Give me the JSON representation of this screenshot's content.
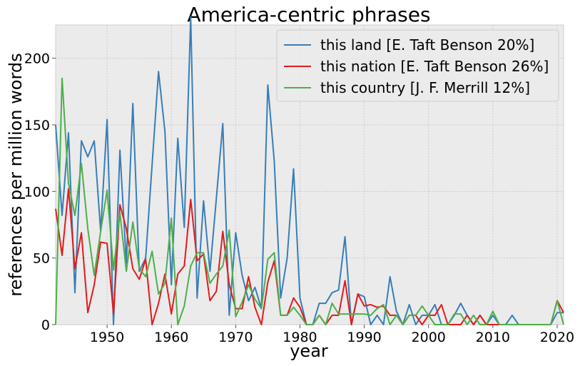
{
  "chart_data": {
    "type": "line",
    "title": "America-centric phrases",
    "xlabel": "year",
    "ylabel": "references per million words",
    "xlim": [
      1942,
      2021
    ],
    "ylim": [
      0,
      225
    ],
    "x_ticks": [
      1950,
      1960,
      1970,
      1980,
      1990,
      2000,
      2010,
      2020
    ],
    "y_ticks": [
      0,
      50,
      100,
      150,
      200
    ],
    "grid": true,
    "legend_position": "top-right",
    "x": [
      1942,
      1943,
      1944,
      1945,
      1946,
      1947,
      1948,
      1949,
      1950,
      1951,
      1952,
      1953,
      1954,
      1955,
      1956,
      1957,
      1958,
      1959,
      1960,
      1961,
      1962,
      1963,
      1964,
      1965,
      1966,
      1967,
      1968,
      1969,
      1970,
      1971,
      1972,
      1973,
      1974,
      1975,
      1976,
      1977,
      1978,
      1979,
      1980,
      1981,
      1982,
      1983,
      1984,
      1985,
      1986,
      1987,
      1988,
      1989,
      1990,
      1991,
      1992,
      1993,
      1994,
      1995,
      1996,
      1997,
      1998,
      1999,
      2000,
      2001,
      2002,
      2003,
      2004,
      2005,
      2006,
      2007,
      2008,
      2009,
      2010,
      2011,
      2012,
      2013,
      2014,
      2015,
      2016,
      2017,
      2018,
      2019,
      2020,
      2021
    ],
    "series": [
      {
        "name": "this land [E. Taft Benson 20%]",
        "color": "#377eb8",
        "values": [
          150,
          82,
          144,
          24,
          138,
          126,
          138,
          70,
          154,
          0,
          131,
          46,
          166,
          40,
          50,
          120,
          190,
          145,
          30,
          140,
          73,
          231,
          20,
          93,
          40,
          95,
          151,
          7,
          69,
          37,
          18,
          28,
          12,
          180,
          123,
          20,
          50,
          117,
          20,
          0,
          0,
          16,
          16,
          24,
          26,
          66,
          0,
          23,
          21,
          0,
          7,
          0,
          36,
          10,
          0,
          15,
          0,
          7,
          7,
          15,
          0,
          0,
          7,
          16,
          7,
          0,
          7,
          0,
          7,
          0,
          0,
          7,
          0,
          0,
          0,
          0,
          0,
          0,
          9,
          9
        ]
      },
      {
        "name": "this nation [E. Taft Benson 26%]",
        "color": "#e41a1c",
        "values": [
          87,
          52,
          102,
          42,
          69,
          9,
          30,
          62,
          61,
          8,
          90,
          72,
          42,
          34,
          49,
          0,
          16,
          38,
          8,
          38,
          44,
          94,
          48,
          53,
          18,
          25,
          70,
          30,
          12,
          12,
          36,
          13,
          0,
          32,
          48,
          7,
          7,
          20,
          13,
          0,
          0,
          7,
          0,
          7,
          7,
          33,
          0,
          23,
          14,
          15,
          13,
          14,
          7,
          7,
          0,
          7,
          7,
          0,
          7,
          7,
          15,
          0,
          0,
          0,
          7,
          0,
          7,
          0,
          0,
          0,
          0,
          0,
          0,
          0,
          0,
          0,
          0,
          0,
          18,
          9
        ]
      },
      {
        "name": "this country [J. F. Merrill 12%]",
        "color": "#4daf4a",
        "values": [
          0,
          185,
          106,
          82,
          121,
          72,
          37,
          70,
          101,
          41,
          84,
          40,
          77,
          42,
          36,
          55,
          23,
          31,
          80,
          0,
          14,
          44,
          54,
          54,
          31,
          38,
          44,
          71,
          6,
          17,
          30,
          19,
          12,
          49,
          54,
          7,
          7,
          13,
          7,
          0,
          0,
          7,
          0,
          16,
          8,
          8,
          8,
          8,
          8,
          7,
          12,
          15,
          0,
          7,
          0,
          7,
          7,
          14,
          7,
          0,
          0,
          0,
          8,
          8,
          0,
          7,
          0,
          0,
          10,
          0,
          0,
          0,
          0,
          0,
          0,
          0,
          0,
          0,
          18,
          0
        ]
      }
    ]
  }
}
